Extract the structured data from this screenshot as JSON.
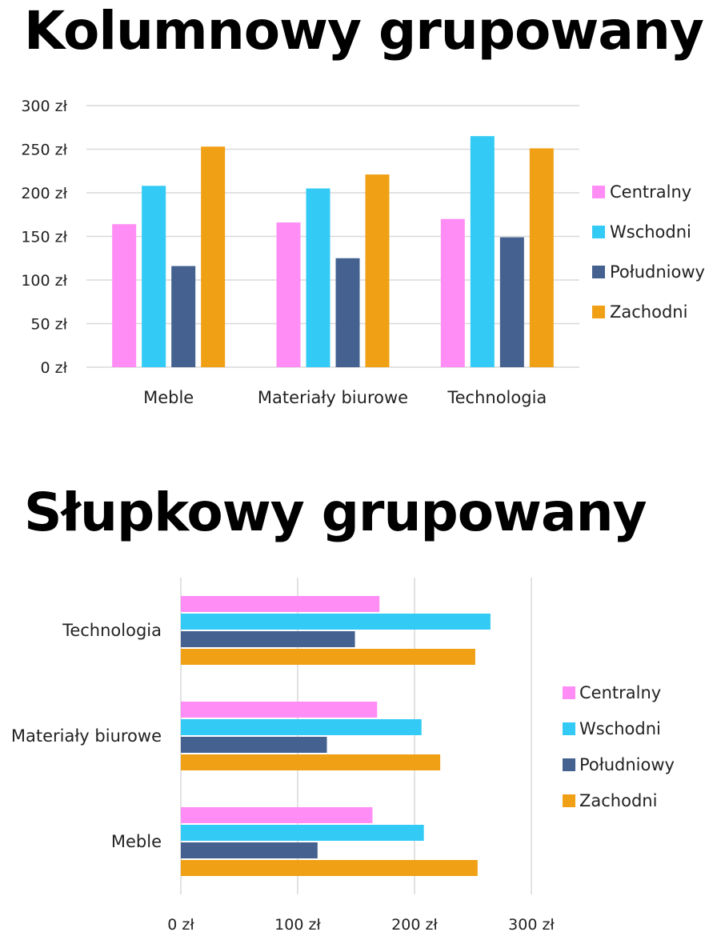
{
  "titles": {
    "column_chart": "Kolumnowy grupowany",
    "bar_chart": "Słupkowy grupowany"
  },
  "chart_data": [
    {
      "type": "bar",
      "orientation": "vertical",
      "categories": [
        "Meble",
        "Materiały biurowe",
        "Technologia"
      ],
      "series": [
        {
          "name": "Centralny",
          "color": "#FF8DF5",
          "values": [
            164,
            166,
            170
          ]
        },
        {
          "name": "Wschodni",
          "color": "#33CBF5",
          "values": [
            208,
            205,
            265
          ]
        },
        {
          "name": "Południowy",
          "color": "#44618F",
          "values": [
            116,
            125,
            149
          ]
        },
        {
          "name": "Zachodni",
          "color": "#F0A014",
          "values": [
            253,
            221,
            251
          ]
        }
      ],
      "ylim": [
        0,
        300
      ],
      "y_ticks": [
        "0 zł",
        "50 zł",
        "100 zł",
        "150 zł",
        "200 zł",
        "250 zł",
        "300 zł"
      ],
      "grid": true,
      "legend": "right"
    },
    {
      "type": "bar",
      "orientation": "horizontal",
      "categories": [
        "Technologia",
        "Materiały biurowe",
        "Meble"
      ],
      "series": [
        {
          "name": "Centralny",
          "color": "#FF8DF5",
          "values": [
            170,
            168,
            164
          ]
        },
        {
          "name": "Wschodni",
          "color": "#33CBF5",
          "values": [
            265,
            206,
            208
          ]
        },
        {
          "name": "Południowy",
          "color": "#44618F",
          "values": [
            149,
            125,
            117
          ]
        },
        {
          "name": "Zachodni",
          "color": "#F0A014",
          "values": [
            252,
            222,
            254
          ]
        }
      ],
      "xlim": [
        0,
        300
      ],
      "x_ticks": [
        "0 zł",
        "100 zł",
        "200 zł",
        "300 zł"
      ],
      "grid": true,
      "legend": "right"
    }
  ]
}
